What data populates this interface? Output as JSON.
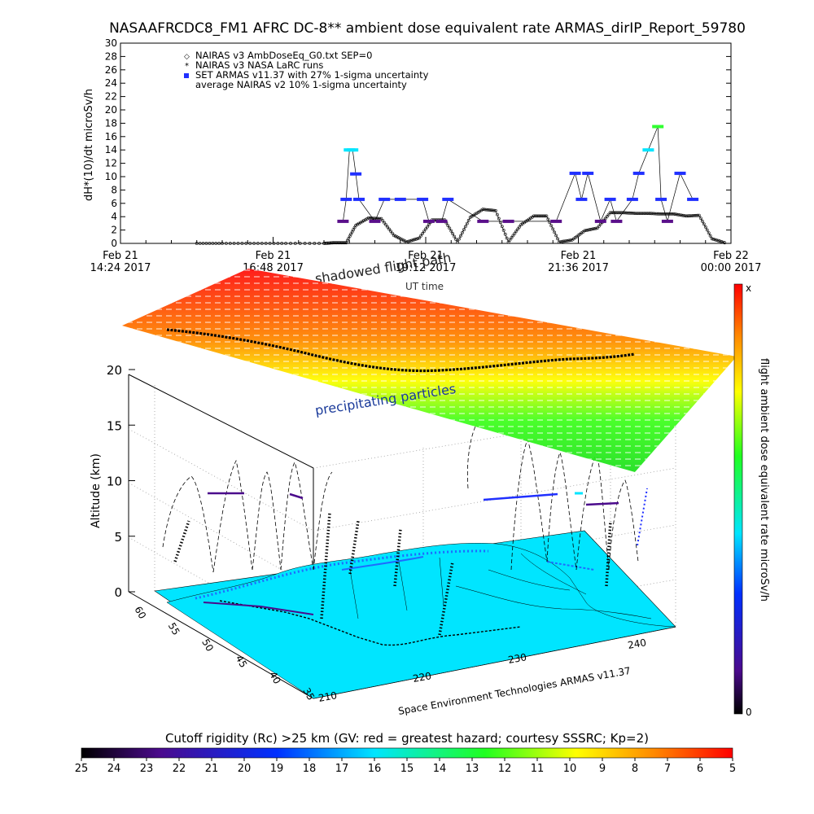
{
  "title": "NASAAFRCDC8_FM1 AFRC DC-8** ambient dose equivalent rate ARMAS_dirIP_Report_59780",
  "colors": {
    "nairas_v3": "#000000",
    "armas_blue": "#2030ff",
    "armas_purple": "#5a0f8a",
    "armas_cyan": "#00e5ff",
    "armas_green": "#30ff30",
    "map_fill": "#00e5ff",
    "map_water": "#1e6cff"
  },
  "chart_data": [
    {
      "type": "line",
      "title": "NASAAFRCDC8_FM1 AFRC DC-8** ambient dose equivalent rate ARMAS_dirIP_Report_59780",
      "ylabel": "dH*(10)/dt microSv/h",
      "xlabel": "UT time",
      "ylim": [
        0,
        30
      ],
      "yticks": [
        "0",
        "2",
        "4",
        "6",
        "8",
        "10",
        "12",
        "14",
        "16",
        "18",
        "20",
        "22",
        "24",
        "26",
        "28",
        "30"
      ],
      "xticks": [
        {
          "top": "Feb 21",
          "bottom": "14:24 2017"
        },
        {
          "top": "Feb 21",
          "bottom": "16:48 2017"
        },
        {
          "top": "Feb 21",
          "bottom": "19:12 2017"
        },
        {
          "top": "Feb 21",
          "bottom": "21:36 2017"
        },
        {
          "top": "Feb 22",
          "bottom": "00:00 2017"
        }
      ],
      "xrange_hours": [
        14.4,
        24.0
      ],
      "legend": {
        "placement": "top-left",
        "entries": [
          {
            "symbol": "diamond",
            "label": "NAIRAS v3 AmbDoseEq_G0.txt SEP=0"
          },
          {
            "symbol": "star",
            "label": "NAIRAS v3 NASA LaRC runs"
          },
          {
            "symbol": "square",
            "label": "SET ARMAS v11.37 with 27% 1-sigma uncertainty"
          },
          {
            "symbol": "none",
            "label": "average NAIRAS v2 10% 1-sigma uncertainty"
          }
        ]
      },
      "series": [
        {
          "name": "NAIRAS v3 AmbDoseEq_G0.txt SEP=0",
          "x": [
            15.6,
            16.0,
            16.5,
            17.0,
            17.6,
            17.75,
            17.95,
            18.1,
            18.3,
            18.5,
            18.7,
            18.9,
            19.1,
            19.3,
            19.5,
            19.7,
            19.9,
            20.1,
            20.3,
            20.5,
            20.7,
            20.9,
            21.1,
            21.3,
            21.5,
            21.7,
            21.9,
            22.1,
            22.3,
            22.5,
            22.7,
            22.9,
            23.1,
            23.3,
            23.5,
            23.7,
            23.9
          ],
          "y": [
            0,
            0,
            0,
            0,
            0,
            0.1,
            0.1,
            2.7,
            3.8,
            3.7,
            1.2,
            0.2,
            0.8,
            3.5,
            3.5,
            0.2,
            3.9,
            5.1,
            4.9,
            0.2,
            2.8,
            4.1,
            4.1,
            0.2,
            0.5,
            1.9,
            2.3,
            4.6,
            4.6,
            4.5,
            4.5,
            4.4,
            4.4,
            4.1,
            4.2,
            0.7,
            0.1
          ]
        },
        {
          "name": "SET ARMAS v11.37 with 27% 1-sigma uncertainty",
          "x": [
            17.9,
            17.95,
            18.0,
            18.05,
            18.1,
            18.15,
            18.4,
            18.55,
            18.8,
            19.15,
            19.25,
            19.45,
            19.55,
            20.1,
            20.5,
            21.25,
            21.55,
            21.65,
            21.75,
            21.95,
            22.1,
            22.2,
            22.45,
            22.55,
            22.7,
            22.85,
            22.9,
            23.0,
            23.2,
            23.4
          ],
          "y": [
            3.3,
            6.6,
            14.0,
            14.0,
            10.4,
            6.6,
            3.3,
            6.6,
            6.6,
            6.6,
            3.3,
            3.3,
            6.6,
            3.3,
            3.3,
            3.3,
            10.5,
            6.6,
            10.5,
            3.3,
            6.6,
            3.3,
            6.6,
            10.5,
            14.0,
            17.5,
            6.6,
            3.3,
            10.5,
            6.6
          ]
        }
      ]
    },
    {
      "type": "scatter",
      "title": "",
      "ylabel": "Altitude (km)",
      "zticks": [
        "0",
        "5",
        "10",
        "15",
        "20"
      ],
      "lat_ticks": [
        "60",
        "55",
        "50",
        "45",
        "40",
        "35"
      ],
      "lon_ticks": [
        "210",
        "220",
        "230",
        "240"
      ],
      "annotations": [
        "shadowed flight path",
        "UT time",
        "precipitating particles",
        "Space Environment Technologies ARMAS v11.37"
      ]
    },
    {
      "type": "heatmap",
      "title": "Cutoff rigidity (Rc) >25 km (GV: red = greatest hazard; courtesy SSSRC; Kp=2)",
      "ticks": [
        "25",
        "24",
        "23",
        "22",
        "21",
        "20",
        "19",
        "18",
        "17",
        "16",
        "15",
        "14",
        "13",
        "12",
        "11",
        "10",
        "9",
        "8",
        "7",
        "6",
        "5"
      ],
      "colormap": "rainbow"
    },
    {
      "type": "heatmap",
      "title": "flight ambient dose equivalent rate microSv/h",
      "top_label": "x",
      "bottom_label": "0",
      "colormap": "rainbow-vertical"
    }
  ]
}
